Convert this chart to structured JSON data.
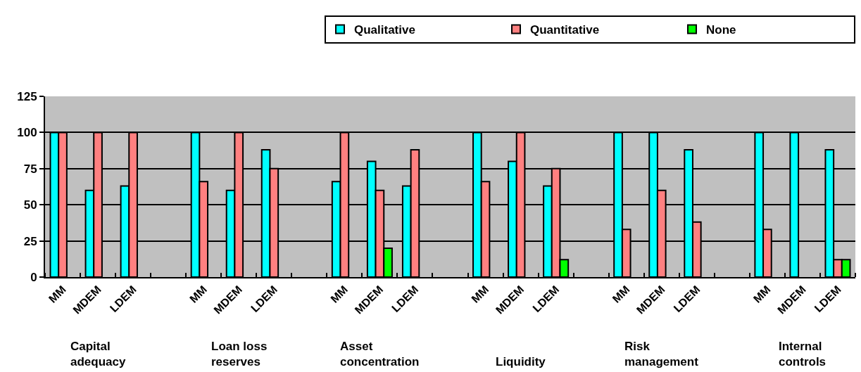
{
  "chart_data": {
    "type": "bar",
    "categories": [
      "MM",
      "MDEM",
      "LDEM",
      null,
      "MM",
      "MDEM",
      "LDEM",
      null,
      "MM",
      "MDEM",
      "LDEM",
      null,
      "MM",
      "MDEM",
      "LDEM",
      null,
      "MM",
      "MDEM",
      "LDEM",
      null,
      "MM",
      "MDEM",
      "LDEM"
    ],
    "series": [
      {
        "name": "Qualitative",
        "color": "#00ffff",
        "values": [
          100,
          60,
          63,
          null,
          100,
          60,
          88,
          null,
          66,
          80,
          63,
          null,
          100,
          80,
          63,
          null,
          100,
          100,
          88,
          null,
          100,
          100,
          88
        ]
      },
      {
        "name": "Quantitative",
        "color": "#ff8080",
        "values": [
          100,
          100,
          100,
          null,
          66,
          100,
          75,
          null,
          100,
          60,
          88,
          null,
          66,
          100,
          75,
          null,
          33,
          60,
          38,
          null,
          33,
          null,
          12
        ]
      },
      {
        "name": "None",
        "color": "#00ff00",
        "values": [
          null,
          null,
          null,
          null,
          null,
          null,
          null,
          null,
          null,
          20,
          null,
          null,
          null,
          null,
          12,
          null,
          null,
          null,
          null,
          null,
          null,
          null,
          12
        ]
      }
    ],
    "annotations": [
      "Capital adequacy",
      "Loan loss reserves",
      "Asset concentration",
      "Liquidity",
      "Risk management",
      "Internal controls"
    ],
    "ylim": [
      0,
      125
    ],
    "yticks": [
      0,
      25,
      50,
      75,
      100,
      125
    ],
    "grid": "y",
    "legend": "top right"
  }
}
